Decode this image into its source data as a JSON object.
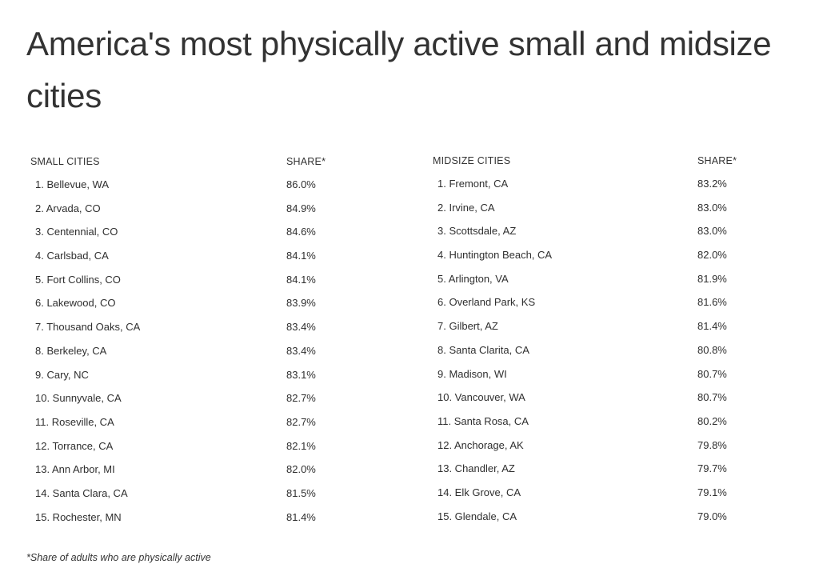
{
  "title": "America's most physically active small and midsize cities",
  "small": {
    "header_city": "SMALL CITIES",
    "header_share": "SHARE*",
    "rows": [
      {
        "city": "1. Bellevue, WA",
        "share": "86.0%"
      },
      {
        "city": "2. Arvada, CO",
        "share": "84.9%"
      },
      {
        "city": "3. Centennial, CO",
        "share": "84.6%"
      },
      {
        "city": "4. Carlsbad, CA",
        "share": "84.1%"
      },
      {
        "city": "5. Fort Collins, CO",
        "share": "84.1%"
      },
      {
        "city": "6. Lakewood, CO",
        "share": "83.9%"
      },
      {
        "city": "7. Thousand Oaks, CA",
        "share": "83.4%"
      },
      {
        "city": "8. Berkeley, CA",
        "share": "83.4%"
      },
      {
        "city": "9. Cary, NC",
        "share": "83.1%"
      },
      {
        "city": "10. Sunnyvale, CA",
        "share": "82.7%"
      },
      {
        "city": "11. Roseville, CA",
        "share": "82.7%"
      },
      {
        "city": "12. Torrance, CA",
        "share": "82.1%"
      },
      {
        "city": "13. Ann Arbor, MI",
        "share": "82.0%"
      },
      {
        "city": "14. Santa Clara, CA",
        "share": "81.5%"
      },
      {
        "city": "15. Rochester, MN",
        "share": "81.4%"
      }
    ]
  },
  "midsize": {
    "header_city": "MIDSIZE CITIES",
    "header_share": "SHARE*",
    "rows": [
      {
        "city": "1. Fremont, CA",
        "share": "83.2%"
      },
      {
        "city": "2. Irvine, CA",
        "share": "83.0%"
      },
      {
        "city": "3. Scottsdale, AZ",
        "share": "83.0%"
      },
      {
        "city": "4. Huntington Beach, CA",
        "share": "82.0%"
      },
      {
        "city": "5. Arlington, VA",
        "share": "81.9%"
      },
      {
        "city": "6. Overland Park, KS",
        "share": "81.6%"
      },
      {
        "city": "7. Gilbert, AZ",
        "share": "81.4%"
      },
      {
        "city": "8. Santa Clarita, CA",
        "share": "80.8%"
      },
      {
        "city": "9. Madison, WI",
        "share": "80.7%"
      },
      {
        "city": "10. Vancouver, WA",
        "share": "80.7%"
      },
      {
        "city": "11. Santa Rosa, CA",
        "share": "80.2%"
      },
      {
        "city": "12. Anchorage, AK",
        "share": "79.8%"
      },
      {
        "city": "13. Chandler, AZ",
        "share": "79.7%"
      },
      {
        "city": "14. Elk Grove, CA",
        "share": "79.1%"
      },
      {
        "city": "15. Glendale, CA",
        "share": "79.0%"
      }
    ]
  },
  "footnote": "*Share of adults who are physically active"
}
